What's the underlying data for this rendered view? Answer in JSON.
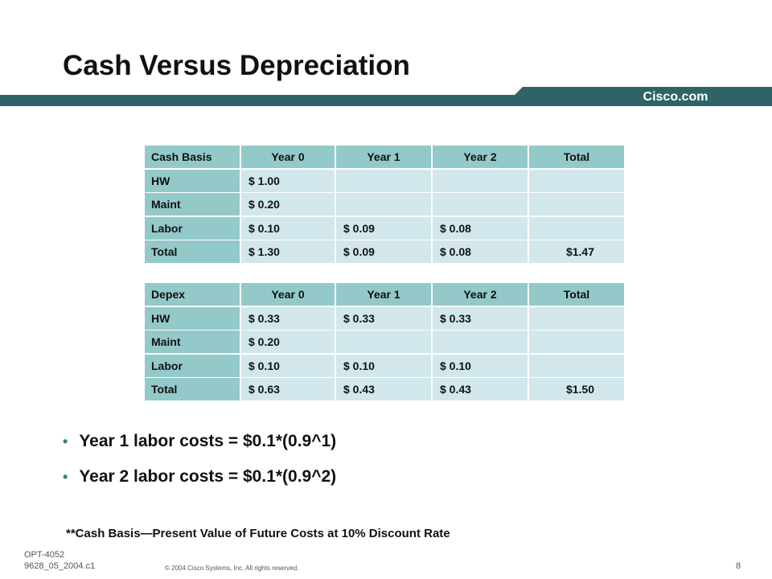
{
  "header": {
    "title": "Cash Versus Depreciation",
    "logo": "Cisco.com"
  },
  "tables": [
    {
      "header": [
        "Cash Basis",
        "Year 0",
        "Year 1",
        "Year 2",
        "Total"
      ],
      "rows": [
        [
          "HW",
          "$ 1.00",
          null,
          null,
          null
        ],
        [
          "Maint",
          "$ 0.20",
          null,
          null,
          null
        ],
        [
          "Labor",
          "$ 0.10",
          "$ 0.09",
          "$ 0.08",
          null
        ],
        [
          "Total",
          "$ 1.30",
          "$ 0.09",
          "$ 0.08",
          "$1.47"
        ]
      ]
    },
    {
      "header": [
        "Depex",
        "Year 0",
        "Year 1",
        "Year 2",
        "Total"
      ],
      "rows": [
        [
          "HW",
          "$ 0.33",
          "$ 0.33",
          "$ 0.33",
          null
        ],
        [
          "Maint",
          "$ 0.20",
          null,
          null,
          null
        ],
        [
          "Labor",
          "$ 0.10",
          "$ 0.10",
          "$ 0.10",
          null
        ],
        [
          "Total",
          "$ 0.63",
          "$ 0.43",
          "$ 0.43",
          "$1.50"
        ]
      ]
    }
  ],
  "bullets": [
    "Year 1 labor costs = $0.1*(0.9^1)",
    "Year 2 labor costs = $0.1*(0.9^2)"
  ],
  "footnote": "**Cash Basis—Present Value of Future Costs at 10% Discount Rate",
  "footer": {
    "code": "OPT-4052",
    "id": "9628_05_2004.c1",
    "copyright": "© 2004 Cisco Systems, Inc. All rights reserved.",
    "page": "8"
  }
}
